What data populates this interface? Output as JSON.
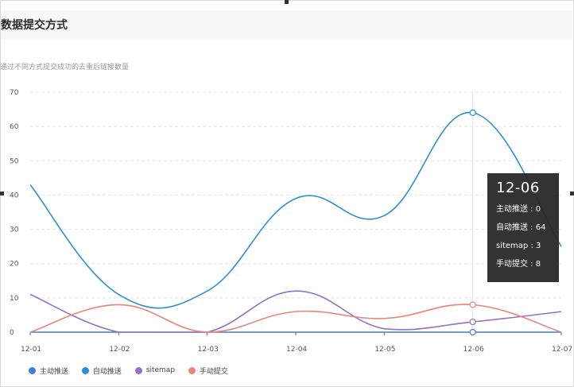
{
  "header": {
    "title": "数据提交方式",
    "subtitle": "通过不同方式提交成功的去重后链接数量"
  },
  "chart_data": {
    "type": "line",
    "categories": [
      "12-01",
      "12-02",
      "12-03",
      "12-04",
      "12-05",
      "12-06",
      "12-07"
    ],
    "series": [
      {
        "name": "主动推送",
        "values": [
          0,
          0,
          0,
          0,
          0,
          0,
          0
        ],
        "color": "#3f7fd9"
      },
      {
        "name": "自动推送",
        "values": [
          43,
          11,
          12,
          39,
          34,
          64,
          25
        ],
        "color": "#2b8fd1"
      },
      {
        "name": "sitemap",
        "values": [
          11,
          0,
          0,
          12,
          1,
          3,
          6
        ],
        "color": "#9470c8"
      },
      {
        "name": "手动提交",
        "values": [
          0,
          8,
          0,
          6,
          4,
          8,
          0
        ],
        "color": "#e8847a"
      }
    ],
    "ylim": [
      0,
      70
    ],
    "yticks": [
      0,
      10,
      20,
      30,
      40,
      50,
      60,
      70
    ],
    "grid": true,
    "legend": "bottom-left",
    "highlight_index": 5
  },
  "tooltip": {
    "title": "12-06",
    "rows": [
      {
        "label": "主动推送 : 0"
      },
      {
        "label": "自动推送 : 64"
      },
      {
        "label": "sitemap : 3"
      },
      {
        "label": "手动提交 : 8"
      }
    ]
  }
}
